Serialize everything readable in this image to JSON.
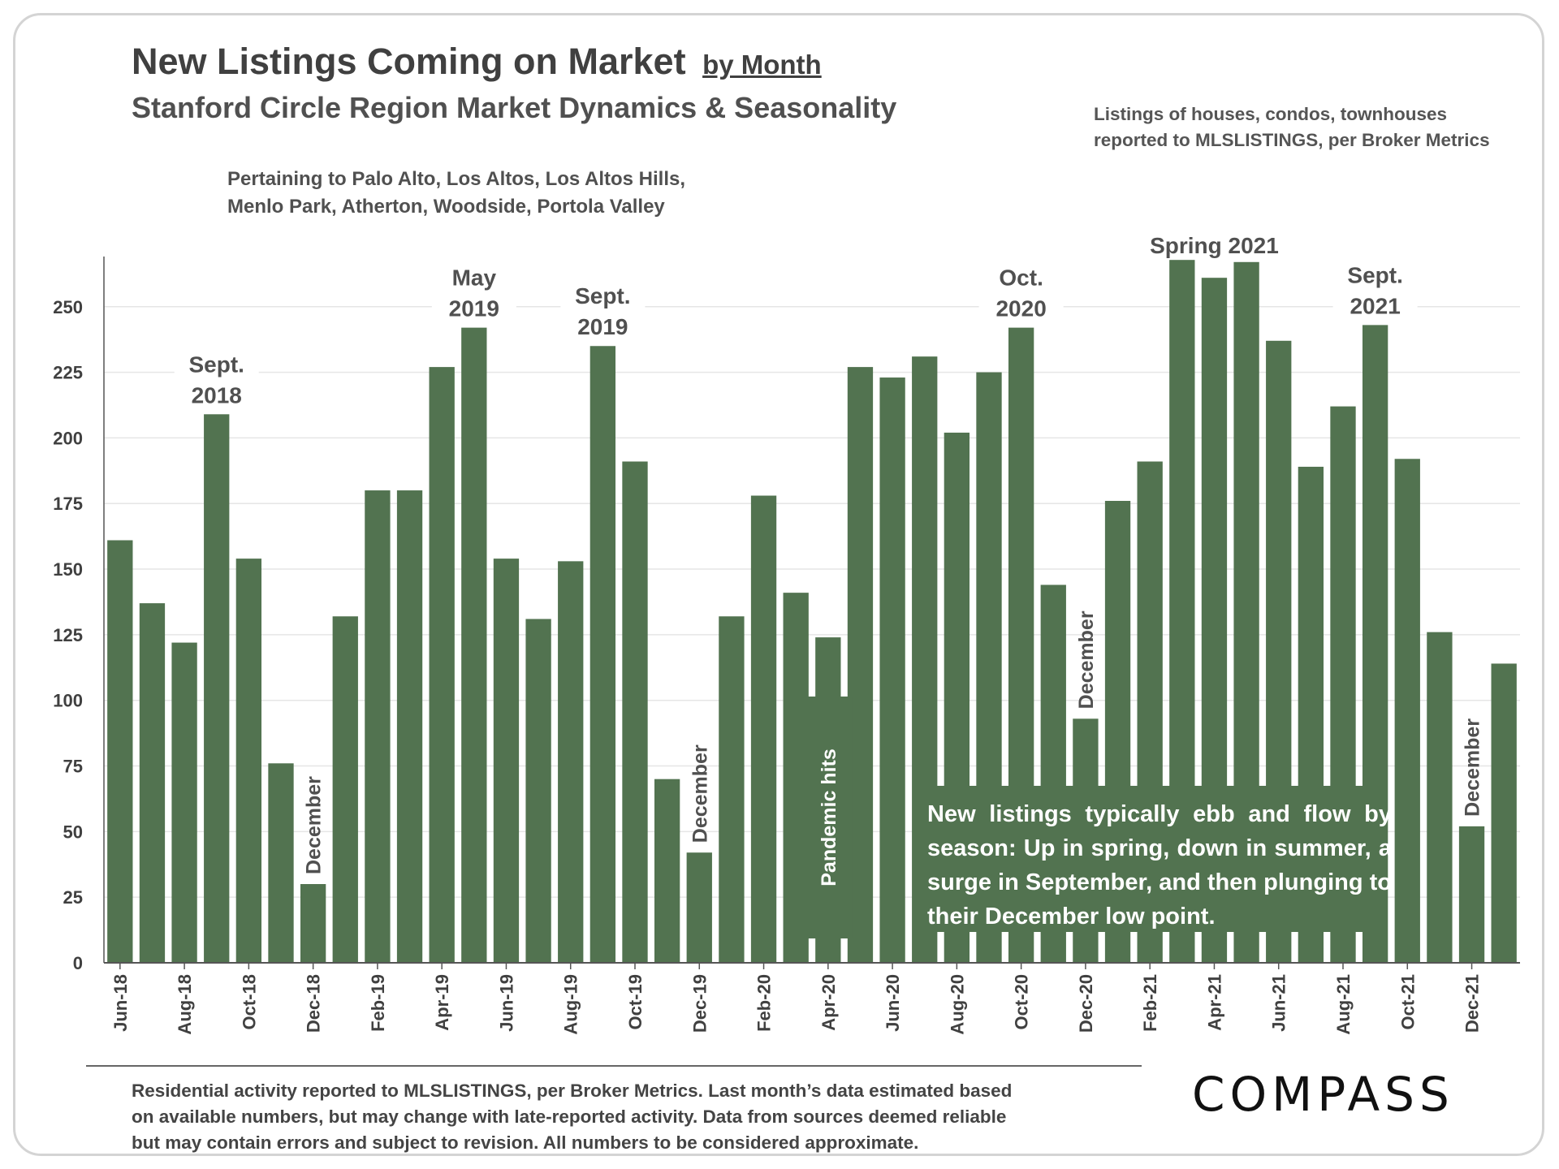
{
  "header": {
    "title": "New Listings Coming on Market",
    "title_suffix": "by Month",
    "subtitle": "Stanford Circle Region Market Dynamics & Seasonality",
    "source_top_line1": "Listings of houses, condos, townhouses",
    "source_top_line2": "reported to MLSLISTINGS, per Broker Metrics",
    "pertaining_line1": "Pertaining to Palo Alto, Los Altos, Los Altos Hills,",
    "pertaining_line2": "Menlo Park, Atherton, Woodside, Portola Valley"
  },
  "callout": {
    "text": "New listings typically ebb and flow by season: Up in spring, down in summer, a surge in September, and then plunging to their December low point."
  },
  "footer": {
    "line1": "Residential activity reported to MLSLISTINGS, per Broker Metrics. Last month’s data estimated based",
    "line2": "on available numbers, but may change with late-reported activity. Data from sources deemed reliable",
    "line3": "but may contain errors and subject to revision. All numbers to be considered approximate.",
    "logo": "COMPASS"
  },
  "colors": {
    "bar": "#527350",
    "grid": "#e6e6e6",
    "axis": "#555555"
  },
  "chart_data": {
    "type": "bar",
    "title": "New Listings Coming on Market by Month",
    "ylim": [
      0,
      270
    ],
    "yticks": [
      0,
      25,
      50,
      75,
      100,
      125,
      150,
      175,
      200,
      225,
      250
    ],
    "categories": [
      "Jun-18",
      "Jul-18",
      "Aug-18",
      "Sep-18",
      "Oct-18",
      "Nov-18",
      "Dec-18",
      "Jan-19",
      "Feb-19",
      "Mar-19",
      "Apr-19",
      "May-19",
      "Jun-19",
      "Jul-19",
      "Aug-19",
      "Sep-19",
      "Oct-19",
      "Nov-19",
      "Dec-19",
      "Jan-20",
      "Feb-20",
      "Mar-20",
      "Apr-20",
      "May-20",
      "Jun-20",
      "Jul-20",
      "Aug-20",
      "Sep-20",
      "Oct-20",
      "Nov-20",
      "Dec-20",
      "Jan-21",
      "Feb-21",
      "Mar-21",
      "Apr-21",
      "May-21",
      "Jun-21",
      "Jul-21",
      "Aug-21",
      "Sep-21",
      "Oct-21",
      "Nov-21",
      "Dec-21",
      "Jan-22"
    ],
    "values": [
      161,
      137,
      122,
      209,
      154,
      76,
      30,
      132,
      180,
      180,
      227,
      242,
      154,
      131,
      153,
      235,
      191,
      70,
      42,
      132,
      178,
      141,
      124,
      227,
      223,
      231,
      202,
      225,
      242,
      144,
      93,
      176,
      191,
      269,
      261,
      267,
      237,
      189,
      212,
      243,
      192,
      126,
      52,
      114
    ],
    "xtick_labels": [
      "Jun-18",
      "Aug-18",
      "Oct-18",
      "Dec-18",
      "Feb-19",
      "Apr-19",
      "Jun-19",
      "Aug-19",
      "Oct-19",
      "Dec-19",
      "Feb-20",
      "Apr-20",
      "Jun-20",
      "Aug-20",
      "Oct-20",
      "Dec-20",
      "Feb-21",
      "Apr-21",
      "Jun-21",
      "Aug-21",
      "Oct-21",
      "Dec-21"
    ],
    "annotations": [
      {
        "bar": 3,
        "line1": "Sept.",
        "line2": "2018"
      },
      {
        "bar": 11,
        "line1": "May",
        "line2": "2019"
      },
      {
        "bar": 15,
        "line1": "Sept.",
        "line2": "2019"
      },
      {
        "bar": 28,
        "line1": "Oct.",
        "line2": "2020"
      },
      {
        "bar": 34,
        "line1": "Spring 2021",
        "line2": ""
      },
      {
        "bar": 39,
        "line1": "Sept.",
        "line2": "2021"
      }
    ],
    "vertical_labels": [
      {
        "bar": 6,
        "text": "December"
      },
      {
        "bar": 18,
        "text": "December"
      },
      {
        "bar": 30,
        "text": "December"
      },
      {
        "bar": 42,
        "text": "December"
      },
      {
        "bar": 22,
        "text": "Pandemic hits"
      }
    ]
  }
}
